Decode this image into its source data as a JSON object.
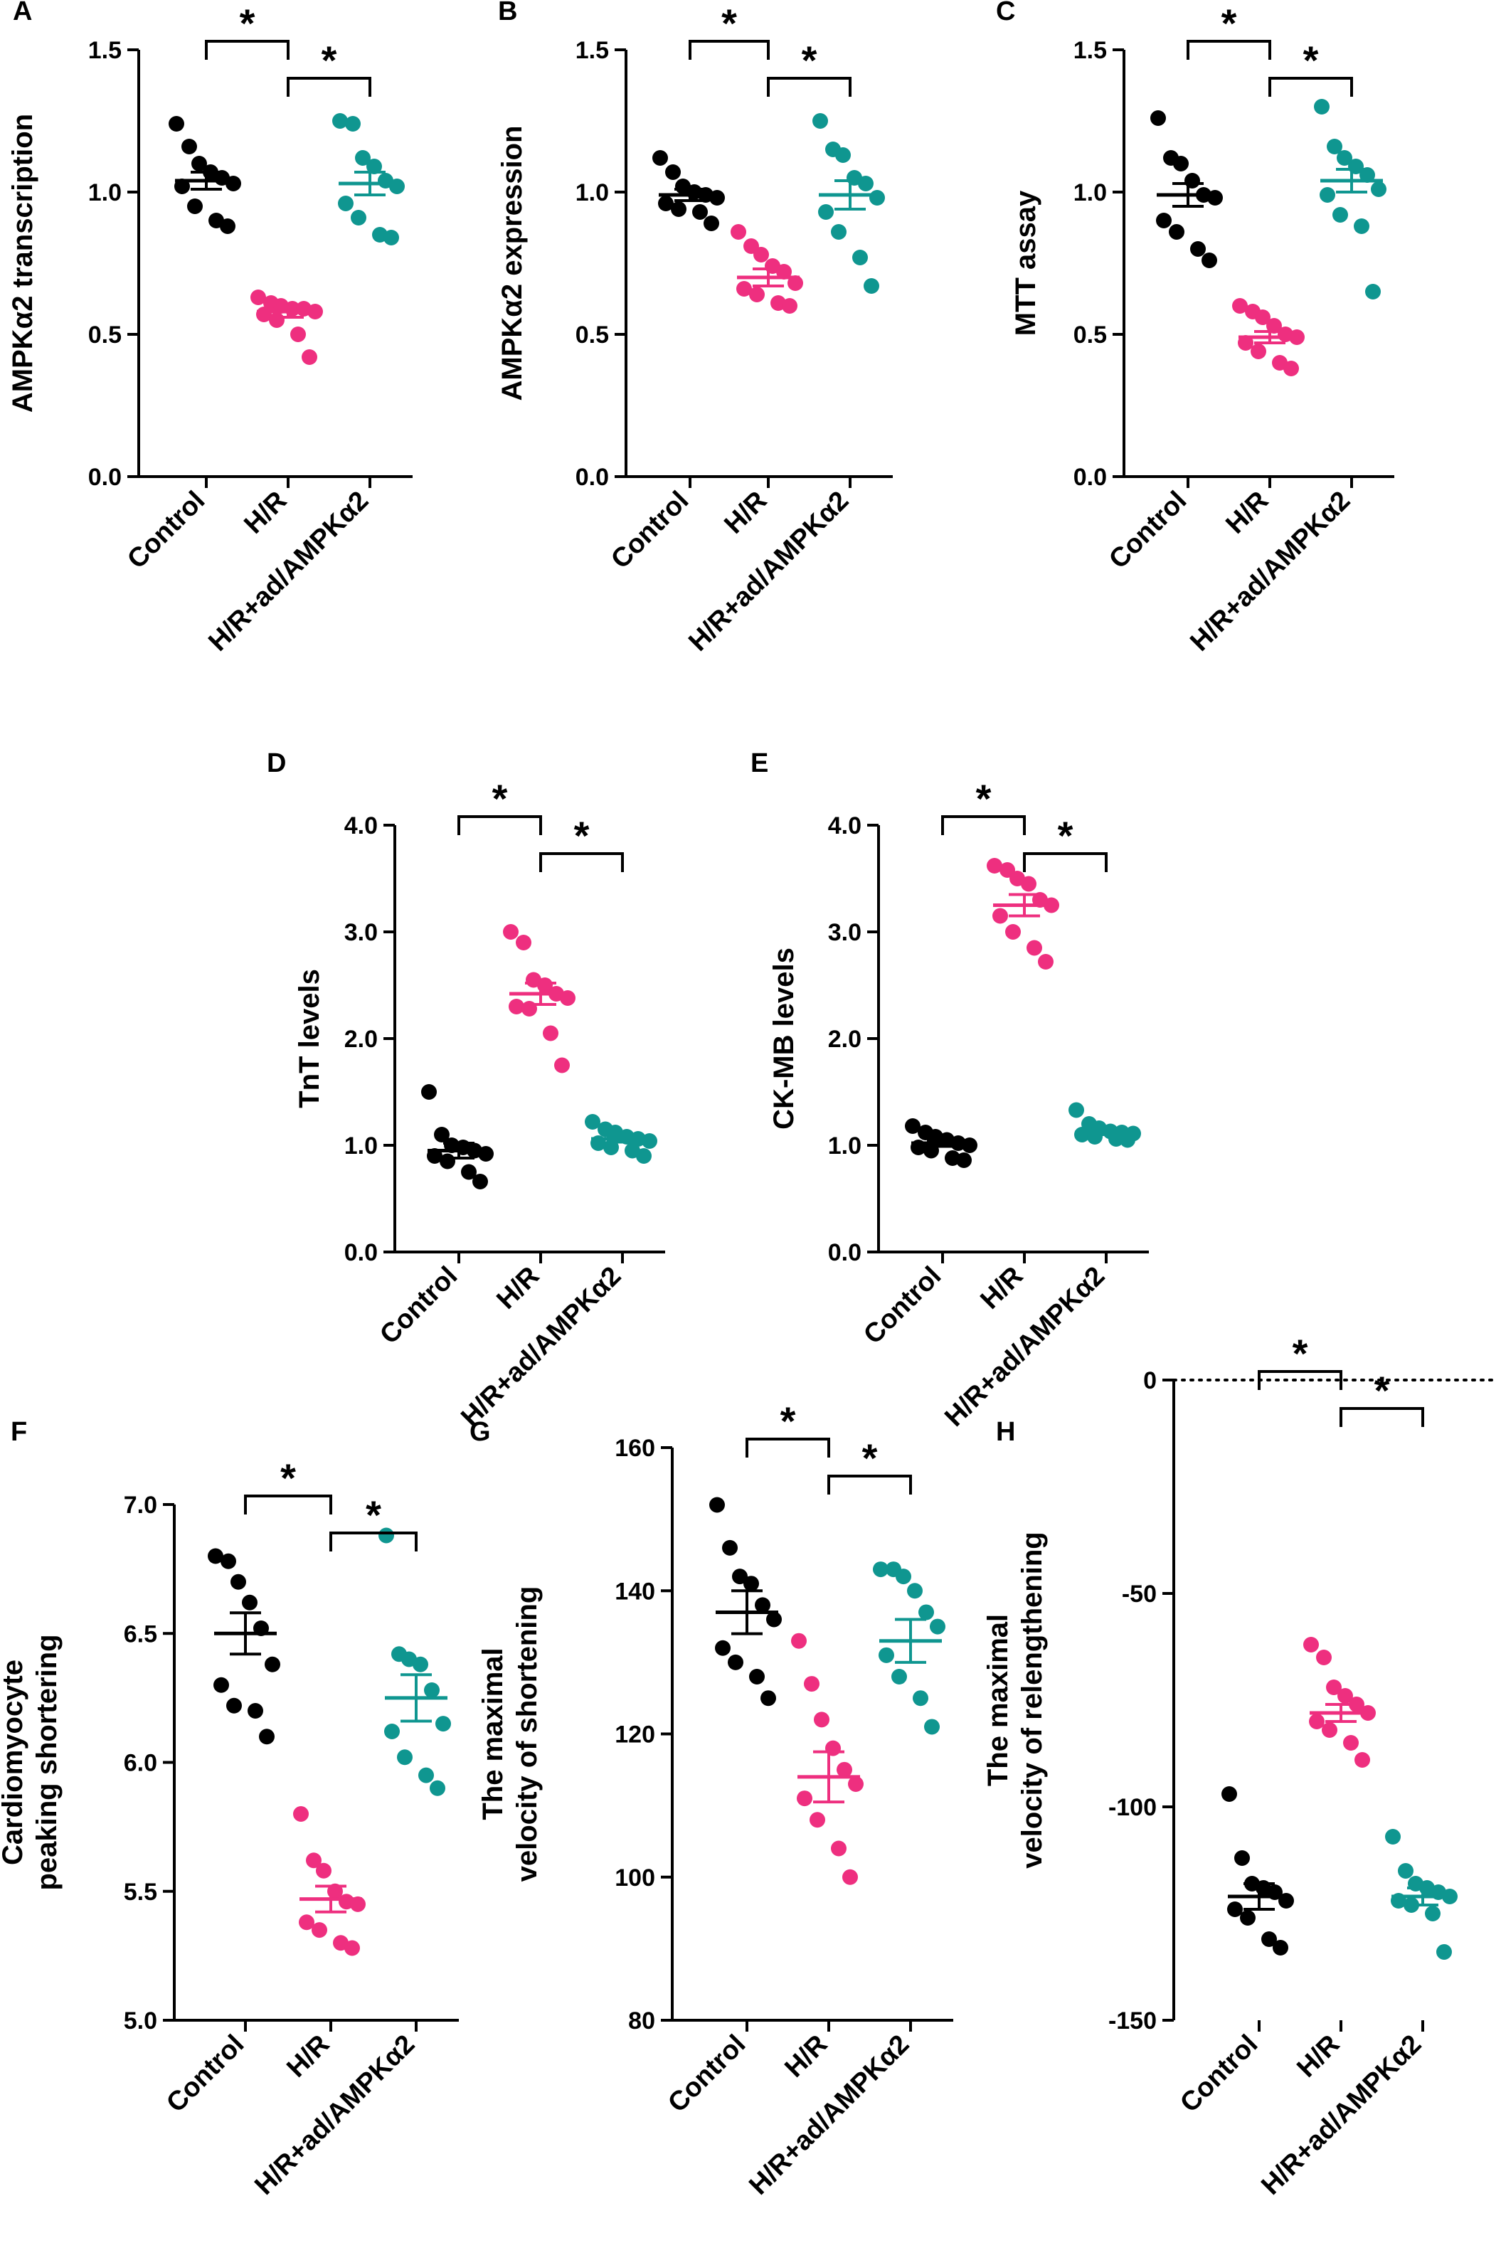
{
  "colors": {
    "control": "#000000",
    "hr": "#ee2f7f",
    "ampk": "#0f9690"
  },
  "chart_data": [
    {
      "panel": "A",
      "type": "scatter",
      "ylabel": [
        "AMPKα2 transcription"
      ],
      "categories": [
        "Control",
        "H/R",
        "H/R+ad/AMPKα2"
      ],
      "yticks": [
        "0.0",
        "0.5",
        "1.0",
        "1.5"
      ],
      "tickvals": [
        0,
        0.5,
        1.0,
        1.5
      ],
      "ylim": [
        0,
        1.5
      ],
      "annotations": [
        "*",
        "*"
      ],
      "series": [
        {
          "name": "Control",
          "mean": 1.04,
          "sem": 0.03,
          "values": [
            1.24,
            1.16,
            1.1,
            1.07,
            1.05,
            1.03,
            1.02,
            0.95,
            0.9,
            0.88
          ]
        },
        {
          "name": "H/R",
          "mean": 0.58,
          "sem": 0.02,
          "values": [
            0.63,
            0.61,
            0.6,
            0.59,
            0.59,
            0.58,
            0.57,
            0.55,
            0.5,
            0.42
          ]
        },
        {
          "name": "H/R+ad/AMPKα2",
          "mean": 1.03,
          "sem": 0.04,
          "values": [
            1.25,
            1.24,
            1.12,
            1.09,
            1.04,
            1.02,
            0.96,
            0.91,
            0.85,
            0.84
          ]
        }
      ]
    },
    {
      "panel": "B",
      "type": "scatter",
      "ylabel": [
        "AMPKα2 expression"
      ],
      "categories": [
        "Control",
        "H/R",
        "H/R+ad/AMPKα2"
      ],
      "yticks": [
        "0.0",
        "0.5",
        "1.0",
        "1.5"
      ],
      "tickvals": [
        0,
        0.5,
        1.0,
        1.5
      ],
      "ylim": [
        0,
        1.5
      ],
      "annotations": [
        "*",
        "*"
      ],
      "series": [
        {
          "name": "Control",
          "mean": 0.99,
          "sem": 0.02,
          "values": [
            1.12,
            1.07,
            1.02,
            1.0,
            0.99,
            0.98,
            0.96,
            0.94,
            0.93,
            0.89
          ]
        },
        {
          "name": "H/R",
          "mean": 0.7,
          "sem": 0.03,
          "values": [
            0.86,
            0.81,
            0.78,
            0.74,
            0.72,
            0.68,
            0.66,
            0.64,
            0.61,
            0.6
          ]
        },
        {
          "name": "H/R+ad/AMPKα2",
          "mean": 0.99,
          "sem": 0.05,
          "values": [
            1.25,
            1.15,
            1.13,
            1.05,
            1.03,
            0.98,
            0.93,
            0.86,
            0.77,
            0.67
          ]
        }
      ]
    },
    {
      "panel": "C",
      "type": "scatter",
      "ylabel": [
        "MTT assay"
      ],
      "categories": [
        "Control",
        "H/R",
        "H/R+ad/AMPKα2"
      ],
      "yticks": [
        "0.0",
        "0.5",
        "1.0",
        "1.5"
      ],
      "tickvals": [
        0,
        0.5,
        1.0,
        1.5
      ],
      "ylim": [
        0,
        1.5
      ],
      "annotations": [
        "*",
        "*"
      ],
      "series": [
        {
          "name": "Control",
          "mean": 0.99,
          "sem": 0.04,
          "values": [
            1.26,
            1.12,
            1.1,
            1.04,
            0.99,
            0.98,
            0.9,
            0.86,
            0.8,
            0.76
          ]
        },
        {
          "name": "H/R",
          "mean": 0.49,
          "sem": 0.02,
          "values": [
            0.6,
            0.58,
            0.56,
            0.53,
            0.5,
            0.49,
            0.47,
            0.44,
            0.4,
            0.38
          ]
        },
        {
          "name": "H/R+ad/AMPKα2",
          "mean": 1.04,
          "sem": 0.04,
          "values": [
            1.3,
            1.16,
            1.12,
            1.09,
            1.06,
            1.01,
            0.99,
            0.92,
            0.88,
            0.65
          ]
        }
      ]
    },
    {
      "panel": "D",
      "type": "scatter",
      "ylabel": [
        "TnT levels"
      ],
      "categories": [
        "Control",
        "H/R",
        "H/R+ad/AMPKα2"
      ],
      "yticks": [
        "0.0",
        "1.0",
        "2.0",
        "3.0",
        "4.0"
      ],
      "tickvals": [
        0,
        1.0,
        2.0,
        3.0,
        4.0
      ],
      "ylim": [
        0,
        4.0
      ],
      "annotations": [
        "*",
        "*"
      ],
      "series": [
        {
          "name": "Control",
          "mean": 0.95,
          "sem": 0.07,
          "values": [
            1.5,
            1.1,
            1.0,
            0.98,
            0.95,
            0.92,
            0.9,
            0.85,
            0.75,
            0.66
          ]
        },
        {
          "name": "H/R",
          "mean": 2.42,
          "sem": 0.1,
          "values": [
            3.0,
            2.9,
            2.55,
            2.5,
            2.42,
            2.38,
            2.3,
            2.28,
            2.05,
            1.75
          ]
        },
        {
          "name": "H/R+ad/AMPKα2",
          "mean": 1.06,
          "sem": 0.03,
          "values": [
            1.22,
            1.15,
            1.12,
            1.08,
            1.06,
            1.04,
            1.02,
            0.98,
            0.95,
            0.9
          ]
        }
      ]
    },
    {
      "panel": "E",
      "type": "scatter",
      "ylabel": [
        "CK-MB levels"
      ],
      "categories": [
        "Control",
        "H/R",
        "H/R+ad/AMPKα2"
      ],
      "yticks": [
        "0.0",
        "1.0",
        "2.0",
        "3.0",
        "4.0"
      ],
      "tickvals": [
        0,
        1.0,
        2.0,
        3.0,
        4.0
      ],
      "ylim": [
        0,
        4.0
      ],
      "annotations": [
        "*",
        "*"
      ],
      "series": [
        {
          "name": "Control",
          "mean": 1.02,
          "sem": 0.03,
          "values": [
            1.18,
            1.12,
            1.08,
            1.05,
            1.02,
            1.0,
            0.98,
            0.95,
            0.88,
            0.86
          ]
        },
        {
          "name": "H/R",
          "mean": 3.25,
          "sem": 0.1,
          "values": [
            3.62,
            3.58,
            3.5,
            3.45,
            3.3,
            3.25,
            3.15,
            3.0,
            2.85,
            2.72
          ]
        },
        {
          "name": "H/R+ad/AMPKα2",
          "mean": 1.12,
          "sem": 0.02,
          "values": [
            1.33,
            1.2,
            1.16,
            1.13,
            1.12,
            1.11,
            1.1,
            1.08,
            1.06,
            1.05
          ]
        }
      ]
    },
    {
      "panel": "F",
      "type": "scatter",
      "ylabel": [
        "Cardiomyocyte",
        "peaking shortering"
      ],
      "categories": [
        "Control",
        "H/R",
        "H/R+ad/AMPKα2"
      ],
      "yticks": [
        "5.0",
        "5.5",
        "6.0",
        "6.5",
        "7.0"
      ],
      "tickvals": [
        5.0,
        5.5,
        6.0,
        6.5,
        7.0
      ],
      "ylim": [
        5.0,
        7.0
      ],
      "annotations": [
        "*",
        "*"
      ],
      "series": [
        {
          "name": "Control",
          "mean": 6.5,
          "sem": 0.08,
          "values": [
            6.8,
            6.78,
            6.7,
            6.62,
            6.52,
            6.38,
            6.3,
            6.22,
            6.2,
            6.1
          ]
        },
        {
          "name": "H/R",
          "mean": 5.47,
          "sem": 0.05,
          "values": [
            5.8,
            5.62,
            5.58,
            5.5,
            5.46,
            5.45,
            5.38,
            5.35,
            5.3,
            5.28
          ]
        },
        {
          "name": "H/R+ad/AMPKα2",
          "mean": 6.25,
          "sem": 0.09,
          "values": [
            6.88,
            6.42,
            6.4,
            6.38,
            6.28,
            6.15,
            6.12,
            6.02,
            5.95,
            5.9
          ]
        }
      ]
    },
    {
      "panel": "G",
      "type": "scatter",
      "ylabel": [
        "The maximal",
        "velocity of shortening"
      ],
      "categories": [
        "Control",
        "H/R",
        "H/R+ad/AMPKα2"
      ],
      "yticks": [
        "80",
        "100",
        "120",
        "140",
        "160"
      ],
      "tickvals": [
        80,
        100,
        120,
        140,
        160
      ],
      "ylim": [
        80,
        160
      ],
      "annotations": [
        "*",
        "*"
      ],
      "series": [
        {
          "name": "Control",
          "mean": 137,
          "sem": 3,
          "values": [
            152,
            146,
            142,
            141,
            138,
            136,
            132,
            130,
            128,
            125
          ]
        },
        {
          "name": "H/R",
          "mean": 114,
          "sem": 3.5,
          "values": [
            133,
            127,
            122,
            118,
            115,
            113,
            111,
            108,
            104,
            100
          ]
        },
        {
          "name": "H/R+ad/AMPKα2",
          "mean": 133,
          "sem": 3,
          "values": [
            143,
            143,
            142,
            140,
            137,
            135,
            131,
            128,
            125,
            121
          ]
        }
      ]
    },
    {
      "panel": "H",
      "type": "scatter",
      "ylabel": [
        "The maximal",
        "velocity of relengthening"
      ],
      "categories": [
        "Control",
        "H/R",
        "H/R+ad/AMPKα2"
      ],
      "yticks": [
        "-150",
        "-100",
        "-50",
        "0"
      ],
      "tickvals": [
        -150,
        -100,
        -50,
        0
      ],
      "ylim": [
        -150,
        0
      ],
      "annotations": [
        "*",
        "*"
      ],
      "series": [
        {
          "name": "Control",
          "mean": -121,
          "sem": 3,
          "values": [
            -97,
            -112,
            -118,
            -119,
            -120,
            -122,
            -124,
            -126,
            -131,
            -133
          ]
        },
        {
          "name": "H/R",
          "mean": -78,
          "sem": 2,
          "values": [
            -62,
            -65,
            -72,
            -74,
            -76,
            -78,
            -80,
            -82,
            -85,
            -89
          ]
        },
        {
          "name": "H/R+ad/AMPKα2",
          "mean": -121,
          "sem": 2,
          "values": [
            -107,
            -115,
            -118,
            -119,
            -120,
            -121,
            -122,
            -123,
            -125,
            -134
          ]
        }
      ]
    }
  ]
}
